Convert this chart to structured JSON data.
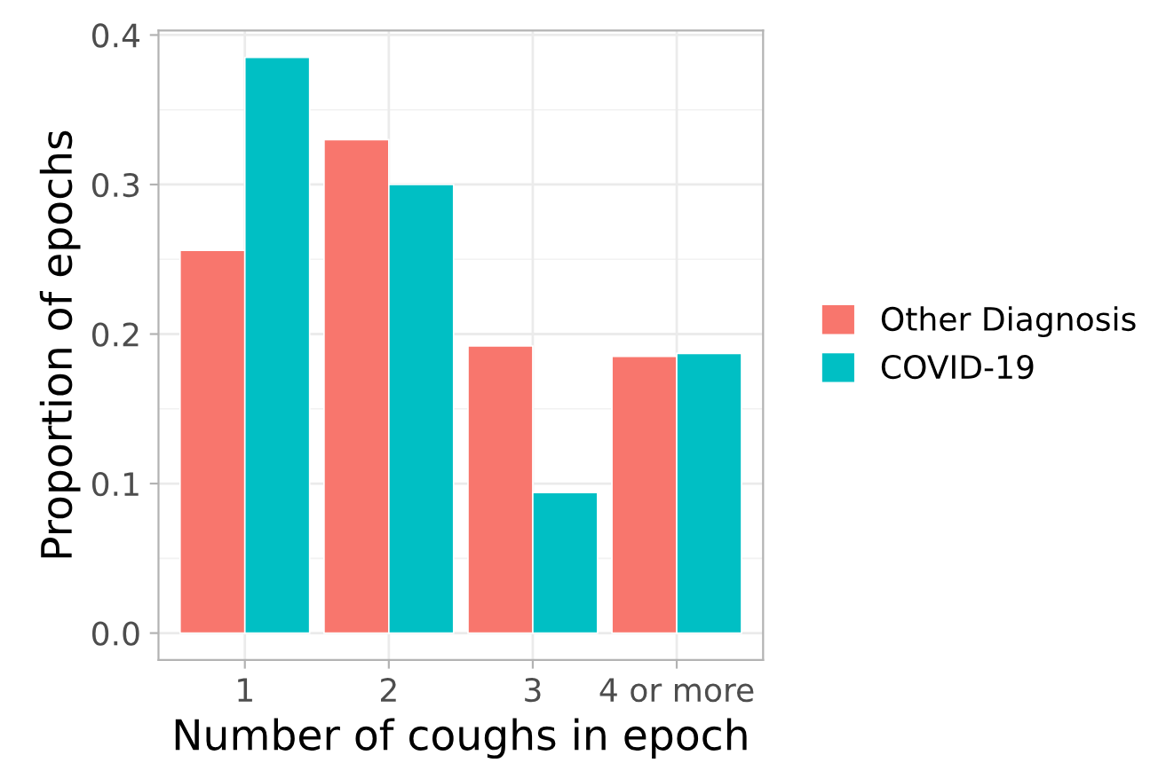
{
  "chart_data": {
    "type": "bar",
    "xlabel": "Number of coughs in epoch",
    "ylabel": "Proportion of epochs",
    "categories": [
      "1",
      "2",
      "3",
      "4 or more"
    ],
    "series": [
      {
        "name": "Other Diagnosis",
        "color": "#f8766d",
        "values": [
          0.256,
          0.33,
          0.192,
          0.185
        ]
      },
      {
        "name": "COVID-19",
        "color": "#00bfc4",
        "values": [
          0.385,
          0.3,
          0.094,
          0.187
        ]
      }
    ],
    "ylim": [
      -0.018,
      0.403
    ],
    "yticks": [
      {
        "value": 0,
        "label": "0.0"
      },
      0.1,
      0.2,
      0.3,
      0.4
    ],
    "grid": true,
    "legend": "right"
  }
}
